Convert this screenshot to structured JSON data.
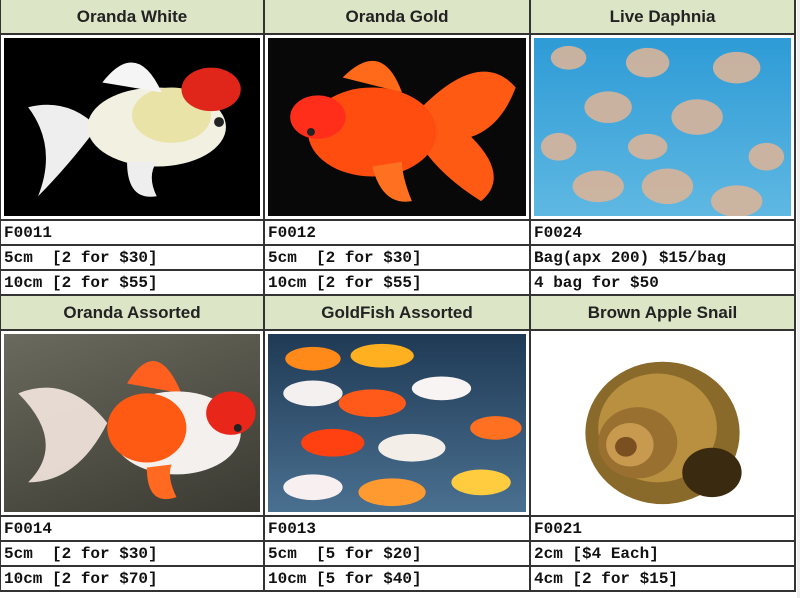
{
  "rows": [
    {
      "products": [
        {
          "name": "Oranda White",
          "image": "oranda-white-goldfish",
          "code": "F0011",
          "lines": [
            "5cm  [2 for $30]",
            "10cm [2 for $55]"
          ]
        },
        {
          "name": "Oranda Gold",
          "image": "oranda-gold-goldfish",
          "code": "F0012",
          "lines": [
            "5cm  [2 for $30]",
            "10cm [2 for $55]"
          ]
        },
        {
          "name": "Live Daphnia",
          "image": "live-daphnia",
          "code": "F0024",
          "lines": [
            "Bag(apx 200) $15/bag",
            "4 bag for $50"
          ]
        }
      ]
    },
    {
      "products": [
        {
          "name": "Oranda Assorted",
          "image": "oranda-assorted-goldfish",
          "code": "F0014",
          "lines": [
            "5cm  [2 for $30]",
            "10cm [2 for $70]"
          ]
        },
        {
          "name": "GoldFish Assorted",
          "image": "goldfish-assorted",
          "code": "F0013",
          "lines": [
            "5cm  [5 for $20]",
            "10cm [5 for $40]"
          ]
        },
        {
          "name": "Brown Apple Snail",
          "image": "brown-apple-snail",
          "code": "F0021",
          "lines": [
            "2cm [$4 Each]",
            "4cm [2 for $15]"
          ]
        }
      ]
    }
  ],
  "colors": {
    "header_bg": "#dce5c6",
    "border": "#333333"
  }
}
